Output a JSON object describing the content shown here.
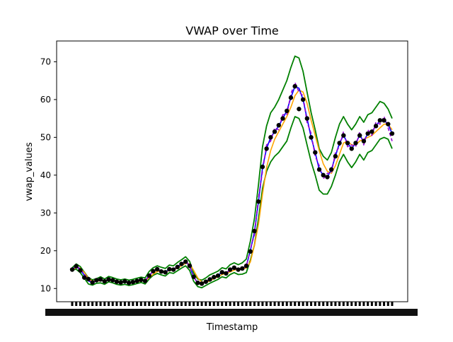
{
  "chart_data": {
    "type": "line",
    "title": "VWAP over Time",
    "xlabel": "Timestamp",
    "ylabel": "vwap_values",
    "ylim": [
      6.5,
      75.5
    ],
    "yticks": [
      10,
      20,
      30,
      40,
      50,
      60,
      70
    ],
    "grid": false,
    "legend": "none",
    "x_tick_note": "dense overlapping timestamp tick labels (unreadable)",
    "series": [
      {
        "role": "vwap",
        "color": "#0000ff",
        "values": [
          15.2,
          15.8,
          15.0,
          13.5,
          12.0,
          11.6,
          12.0,
          12.3,
          11.8,
          12.5,
          12.2,
          11.8,
          11.6,
          11.8,
          11.5,
          11.7,
          12.0,
          12.3,
          12.0,
          13.5,
          14.5,
          15.0,
          14.6,
          14.3,
          15.2,
          15.0,
          15.8,
          16.5,
          17.2,
          16.0,
          13.0,
          11.5,
          11.2,
          11.8,
          12.5,
          13.0,
          13.5,
          14.3,
          14.0,
          15.0,
          15.5,
          15.0,
          15.3,
          16.0,
          20.0,
          25.0,
          33.0,
          42.0,
          47.0,
          50.0,
          51.5,
          53.0,
          55.0,
          57.0,
          60.5,
          63.5,
          63.0,
          60.0,
          55.0,
          50.0,
          46.0,
          41.5,
          40.0,
          39.5,
          41.5,
          45.0,
          48.5,
          50.5,
          48.5,
          47.0,
          48.5,
          50.5,
          49.0,
          51.0,
          51.5,
          53.0,
          54.5,
          54.5,
          53.5,
          51.0
        ]
      },
      {
        "role": "band-upper",
        "color": "#008000",
        "values": [
          15.5,
          16.5,
          15.8,
          14.3,
          12.8,
          12.3,
          12.6,
          13.1,
          12.5,
          13.2,
          12.9,
          12.5,
          12.3,
          12.5,
          12.2,
          12.4,
          12.7,
          13.0,
          12.8,
          14.5,
          15.5,
          16.0,
          15.6,
          15.3,
          16.2,
          16.0,
          16.9,
          17.6,
          18.4,
          17.2,
          14.1,
          12.5,
          12.2,
          12.8,
          13.6,
          14.1,
          14.6,
          15.5,
          15.2,
          16.3,
          16.8,
          16.3,
          16.8,
          17.8,
          22.5,
          28.5,
          37.5,
          47.5,
          53.0,
          56.5,
          58.0,
          60.0,
          62.5,
          65.0,
          68.5,
          71.5,
          71.0,
          67.5,
          62.0,
          56.5,
          52.0,
          47.0,
          45.0,
          44.0,
          46.0,
          50.0,
          53.5,
          55.5,
          53.5,
          52.0,
          53.5,
          55.5,
          54.0,
          56.0,
          56.5,
          58.0,
          59.5,
          59.0,
          57.5,
          55.0
        ]
      },
      {
        "role": "band-lower",
        "color": "#008000",
        "values": [
          14.9,
          15.1,
          14.2,
          12.7,
          11.2,
          10.9,
          11.4,
          11.5,
          11.1,
          11.8,
          11.5,
          11.1,
          10.9,
          11.1,
          10.8,
          11.0,
          11.3,
          11.6,
          11.2,
          12.5,
          13.5,
          14.0,
          13.6,
          13.3,
          14.2,
          14.0,
          14.7,
          15.4,
          16.0,
          14.8,
          11.9,
          10.5,
          10.2,
          10.8,
          11.4,
          11.9,
          12.4,
          13.1,
          12.8,
          13.7,
          14.2,
          13.7,
          13.8,
          14.2,
          17.5,
          21.5,
          28.5,
          36.5,
          41.0,
          43.5,
          45.0,
          46.0,
          47.5,
          49.0,
          52.5,
          55.5,
          55.0,
          52.5,
          48.0,
          43.5,
          40.0,
          36.0,
          35.0,
          35.0,
          37.0,
          40.0,
          43.5,
          45.5,
          43.5,
          42.0,
          43.5,
          45.5,
          44.0,
          46.0,
          46.5,
          48.0,
          49.5,
          50.0,
          49.5,
          47.0
        ]
      },
      {
        "role": "purple",
        "color": "#9400d3",
        "values": [
          15.0,
          15.9,
          15.2,
          13.8,
          12.3,
          11.5,
          12.2,
          12.5,
          11.6,
          12.7,
          12.0,
          11.9,
          11.4,
          12.0,
          11.3,
          11.9,
          12.2,
          12.1,
          12.2,
          13.2,
          14.8,
          14.8,
          14.9,
          14.0,
          15.5,
          14.7,
          16.1,
          16.2,
          17.5,
          15.7,
          13.3,
          11.2,
          11.5,
          11.5,
          12.8,
          12.7,
          13.8,
          14.0,
          14.3,
          14.7,
          15.8,
          14.7,
          15.6,
          15.7,
          20.5,
          24.2,
          34.0,
          41.0,
          48.0,
          49.0,
          52.5,
          52.0,
          56.0,
          56.0,
          61.5,
          64.5,
          62.0,
          61.0,
          54.0,
          51.0,
          45.0,
          42.5,
          39.0,
          40.5,
          40.5,
          46.0,
          47.5,
          51.5,
          47.5,
          48.0,
          47.5,
          51.5,
          48.0,
          52.0,
          50.5,
          54.0,
          53.5,
          55.5,
          52.5,
          49.0
        ]
      },
      {
        "role": "trend",
        "color": "#ffa500",
        "values": [
          15.0,
          15.5,
          15.4,
          14.2,
          12.6,
          12.0,
          11.9,
          12.1,
          12.1,
          12.2,
          12.2,
          12.0,
          11.8,
          11.7,
          11.6,
          11.6,
          11.8,
          12.0,
          12.1,
          12.8,
          13.8,
          14.5,
          14.7,
          14.5,
          14.7,
          15.0,
          15.4,
          16.0,
          16.7,
          16.5,
          14.8,
          12.8,
          11.7,
          11.6,
          12.0,
          12.6,
          13.1,
          13.7,
          14.0,
          14.4,
          14.9,
          15.1,
          15.2,
          15.4,
          17.0,
          21.5,
          27.0,
          35.0,
          42.0,
          46.5,
          49.5,
          51.5,
          53.5,
          55.5,
          58.0,
          61.0,
          62.5,
          62.0,
          59.0,
          54.5,
          50.5,
          46.5,
          43.0,
          41.0,
          40.5,
          42.5,
          45.5,
          48.5,
          49.0,
          48.0,
          48.0,
          49.0,
          49.5,
          50.0,
          50.5,
          51.5,
          52.5,
          53.5,
          53.5,
          52.0
        ]
      },
      {
        "role": "markers",
        "color": "#000000",
        "values": [
          15.0,
          15.9,
          14.8,
          12.9,
          12.5,
          11.6,
          12.2,
          12.4,
          11.9,
          12.4,
          12.2,
          11.8,
          11.6,
          11.9,
          11.5,
          11.7,
          12.0,
          12.3,
          12.0,
          13.4,
          14.6,
          15.1,
          14.5,
          14.3,
          15.1,
          15.0,
          15.7,
          16.5,
          17.1,
          16.0,
          13.1,
          11.5,
          11.3,
          11.8,
          12.4,
          13.0,
          13.4,
          14.3,
          14.0,
          15.0,
          15.5,
          15.0,
          15.3,
          16.0,
          19.8,
          25.2,
          33.0,
          42.2,
          47.0,
          50.0,
          51.5,
          53.2,
          55.0,
          57.0,
          60.5,
          63.5,
          57.5,
          60.0,
          55.0,
          50.0,
          46.0,
          41.5,
          40.0,
          39.5,
          41.5,
          45.0,
          48.5,
          50.5,
          48.5,
          47.0,
          48.5,
          50.5,
          49.0,
          51.0,
          51.5,
          53.0,
          54.5,
          54.5,
          53.5,
          51.0
        ]
      }
    ]
  }
}
